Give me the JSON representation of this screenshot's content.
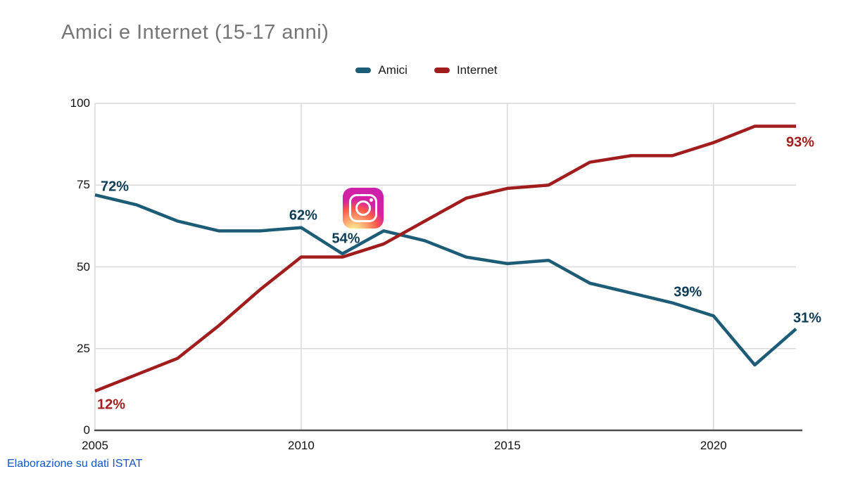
{
  "title": "Amici e Internet (15-17 anni)",
  "footer": {
    "source_note": "Elaborazione su dati ISTAT"
  },
  "chart_data": {
    "type": "line",
    "title": "Amici e Internet (15-17 anni)",
    "x": [
      2005,
      2006,
      2007,
      2008,
      2009,
      2010,
      2011,
      2012,
      2013,
      2014,
      2015,
      2016,
      2017,
      2018,
      2019,
      2020,
      2021,
      2022
    ],
    "series": [
      {
        "name": "Amici",
        "color": "#1c5c77",
        "label_color": "#0d3c55",
        "values": [
          72,
          69,
          64,
          61,
          61,
          62,
          54,
          61,
          58,
          53,
          51,
          52,
          45,
          42,
          39,
          35,
          20,
          31
        ]
      },
      {
        "name": "Internet",
        "color": "#a11d1d",
        "label_color": "#a61e1e",
        "values": [
          12,
          17,
          22,
          32,
          43,
          53,
          53,
          57,
          64,
          71,
          74,
          75,
          82,
          84,
          84,
          88,
          93,
          93
        ]
      }
    ],
    "xlim": [
      2005,
      2022
    ],
    "ylim": [
      0,
      100
    ],
    "x_ticks": [
      2005,
      2010,
      2015,
      2020
    ],
    "y_ticks": [
      0,
      25,
      50,
      75,
      100
    ],
    "grid": true,
    "legend_position": "top",
    "annotations": [
      {
        "text": "72%",
        "series": "Amici",
        "year": 2005,
        "value": 72
      },
      {
        "text": "62%",
        "series": "Amici",
        "year": 2010,
        "value": 62
      },
      {
        "text": "54%",
        "series": "Amici",
        "year": 2011,
        "value": 54
      },
      {
        "text": "39%",
        "series": "Amici",
        "year": 2019,
        "value": 39
      },
      {
        "text": "31%",
        "series": "Amici",
        "year": 2022,
        "value": 31
      },
      {
        "text": "12%",
        "series": "Internet",
        "year": 2005,
        "value": 12
      },
      {
        "text": "93%",
        "series": "Internet",
        "year": 2022,
        "value": 93
      }
    ],
    "overlay_icon": {
      "name": "instagram-logo",
      "year": 2011.5,
      "value": 68
    }
  },
  "colors": {
    "title_text": "#757575",
    "axis_text": "#111111",
    "gridline": "#d9d9d9",
    "axis_line": "#4d4d4d",
    "footer_link": "#1155cc"
  }
}
